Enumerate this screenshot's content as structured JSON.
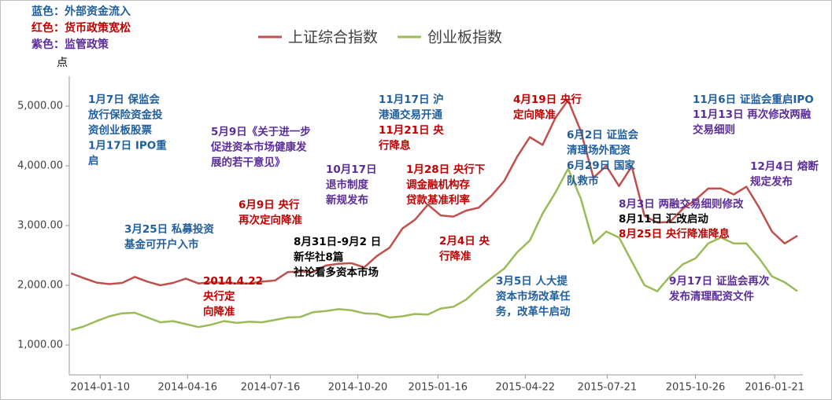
{
  "chart_data": {
    "type": "line",
    "notes": [
      {
        "text": "蓝色：外部资金流入",
        "color": "#1f5f9f"
      },
      {
        "text": "红色：货币政策宽松",
        "color": "#c00000"
      },
      {
        "text": "紫色：监管政策",
        "color": "#5b2d9a"
      }
    ],
    "ylabel": "点",
    "x": [
      "2013-12-09",
      "2013-12-23",
      "2014-01-06",
      "2014-01-20",
      "2014-02-03",
      "2014-02-17",
      "2014-03-03",
      "2014-03-17",
      "2014-03-31",
      "2014-04-14",
      "2014-04-28",
      "2014-05-12",
      "2014-05-26",
      "2014-06-09",
      "2014-06-23",
      "2014-07-07",
      "2014-07-21",
      "2014-08-04",
      "2014-08-18",
      "2014-09-01",
      "2014-09-15",
      "2014-09-29",
      "2014-10-13",
      "2014-10-27",
      "2014-11-10",
      "2014-11-24",
      "2014-12-08",
      "2014-12-22",
      "2015-01-05",
      "2015-01-19",
      "2015-02-02",
      "2015-02-16",
      "2015-03-02",
      "2015-03-16",
      "2015-03-30",
      "2015-04-13",
      "2015-04-27",
      "2015-05-11",
      "2015-05-25",
      "2015-06-08",
      "2015-06-22",
      "2015-07-06",
      "2015-07-20",
      "2015-08-03",
      "2015-08-17",
      "2015-08-31",
      "2015-09-14",
      "2015-09-28",
      "2015-10-12",
      "2015-10-26",
      "2015-11-09",
      "2015-11-23",
      "2015-12-07",
      "2015-12-21",
      "2016-01-04",
      "2016-01-18",
      "2016-02-01",
      "2016-02-15"
    ],
    "series": [
      {
        "name": "上证综合指数",
        "color": "#c0504d",
        "values": [
          2200,
          2120,
          2045,
          2020,
          2040,
          2140,
          2060,
          2000,
          2040,
          2110,
          2030,
          2050,
          2040,
          2030,
          2030,
          2060,
          2080,
          2220,
          2230,
          2220,
          2330,
          2360,
          2370,
          2300,
          2490,
          2630,
          2950,
          3100,
          3350,
          3170,
          3150,
          3250,
          3300,
          3500,
          3750,
          4150,
          4480,
          4350,
          4800,
          5100,
          4580,
          3800,
          4000,
          3660,
          3990,
          3160,
          3050,
          3060,
          3280,
          3430,
          3620,
          3620,
          3520,
          3650,
          3300,
          2900,
          2700,
          2830
        ]
      },
      {
        "name": "创业板指数",
        "color": "#9bbb59",
        "values": [
          1250,
          1310,
          1400,
          1480,
          1530,
          1540,
          1460,
          1380,
          1400,
          1350,
          1300,
          1340,
          1400,
          1370,
          1390,
          1380,
          1420,
          1460,
          1470,
          1550,
          1570,
          1600,
          1580,
          1530,
          1520,
          1460,
          1480,
          1520,
          1510,
          1610,
          1640,
          1760,
          1950,
          2120,
          2280,
          2550,
          2750,
          3200,
          3550,
          3950,
          3450,
          2700,
          2900,
          2800,
          2400,
          2000,
          1900,
          2150,
          2350,
          2450,
          2700,
          2800,
          2700,
          2700,
          2450,
          2150,
          2050,
          1900
        ]
      }
    ],
    "xlim": [
      "2013-12-07",
      "2016-02-21"
    ],
    "xticks": [
      "2014-01-10",
      "2014-04-16",
      "2014-07-16",
      "2014-10-20",
      "2015-01-16",
      "2015-04-22",
      "2015-07-21",
      "2015-10-26",
      "2016-01-21"
    ],
    "ylim": [
      500,
      5500
    ],
    "yticks": [
      {
        "value": 1000,
        "label": "1,000.00"
      },
      {
        "value": 2000,
        "label": "2,000.00"
      },
      {
        "value": 3000,
        "label": "3,000.00"
      },
      {
        "value": 4000,
        "label": "4,000.00"
      },
      {
        "value": 5000,
        "label": "5,000.00"
      }
    ],
    "grid": false,
    "annotations": [
      {
        "lines": [
          "1月7日 保监会",
          "放行保险资金投",
          "资创业板股票",
          "1月17日 IPO重",
          "启"
        ],
        "color": "#1f5f9f"
      },
      {
        "lines": [
          "5月9日《关于进一步",
          "促进资本市场健康发",
          "展的若干意见》"
        ],
        "color": "#5b2d9a"
      },
      {
        "lines": [
          "10月17日",
          "退市制度",
          "新规发布"
        ],
        "color": "#5b2d9a"
      },
      {
        "lines": [
          "11月17日 沪",
          "港通交易开通"
        ],
        "color": "#1f5f9f"
      },
      {
        "lines": [
          "11月21日 央",
          "行降息"
        ],
        "color": "#c00000"
      },
      {
        "lines": [
          "4月19日 央行",
          "定向降准"
        ],
        "color": "#c00000"
      },
      {
        "lines": [
          "6月2日 证监会",
          "清理场外配资",
          "6月29日 国家",
          "队救市"
        ],
        "color": "#1f5f9f"
      },
      {
        "lines": [
          "11月6日 证监会重启IPO"
        ],
        "color": "#1f5f9f"
      },
      {
        "lines": [
          "11月13日 再次修改两融",
          "交易细则"
        ],
        "color": "#5b2d9a"
      },
      {
        "lines": [
          "12月4日 熔断",
          "规定发布"
        ],
        "color": "#5b2d9a"
      },
      {
        "lines": [
          "1月28日 央行下",
          "调金融机构存",
          "贷款基准利率"
        ],
        "color": "#c00000"
      },
      {
        "lines": [
          "6月9日 央行",
          "再次定向降准"
        ],
        "color": "#c00000"
      },
      {
        "lines": [
          "3月25日 私募投资",
          "基金可开户入市"
        ],
        "color": "#1f5f9f"
      },
      {
        "lines": [
          "8月31日-9月2 日",
          "新华社8篇",
          "社论看多资本市场"
        ],
        "color": "#000000"
      },
      {
        "lines": [
          "2月4日 央",
          "行降准"
        ],
        "color": "#c00000"
      },
      {
        "lines": [
          "8月3日 两融交易细则修改"
        ],
        "color": "#5b2d9a"
      },
      {
        "lines": [
          "8月11日 汇改启动"
        ],
        "color": "#000000"
      },
      {
        "lines": [
          "8月25日 央行降准降息"
        ],
        "color": "#c00000"
      },
      {
        "lines": [
          "2014.4.22",
          "央行定",
          "向降准"
        ],
        "color": "#c00000"
      },
      {
        "lines": [
          "3月5日 人大提",
          "资本市场改革任",
          "务，改革牛启动"
        ],
        "color": "#1f5f9f"
      },
      {
        "lines": [
          "9月17日 证监会再次",
          "发布清理配资文件"
        ],
        "color": "#5b2d9a"
      }
    ]
  }
}
